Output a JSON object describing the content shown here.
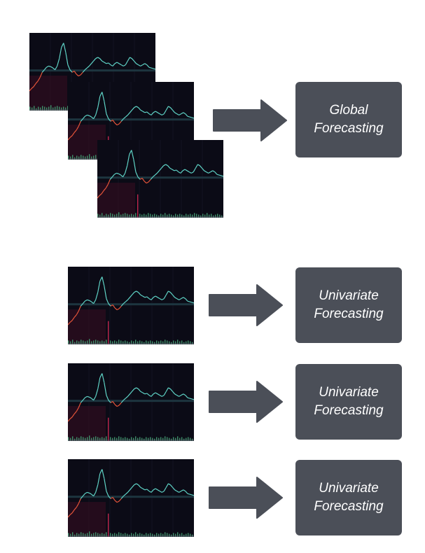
{
  "global": {
    "line1": "Global",
    "line2": "Forecasting"
  },
  "univariate": [
    {
      "line1": "Univariate",
      "line2": "Forecasting"
    },
    {
      "line1": "Univariate",
      "line2": "Forecasting"
    },
    {
      "line1": "Univariate",
      "line2": "Forecasting"
    }
  ],
  "colors": {
    "box": "#4b4f58",
    "arrow": "#4b4f58",
    "chart_bg": "#0b0b16",
    "line_low": "#e4543a",
    "line_high": "#5fd3c6",
    "volume": "#3f8f6a",
    "volume_spike": "#c0264e"
  }
}
